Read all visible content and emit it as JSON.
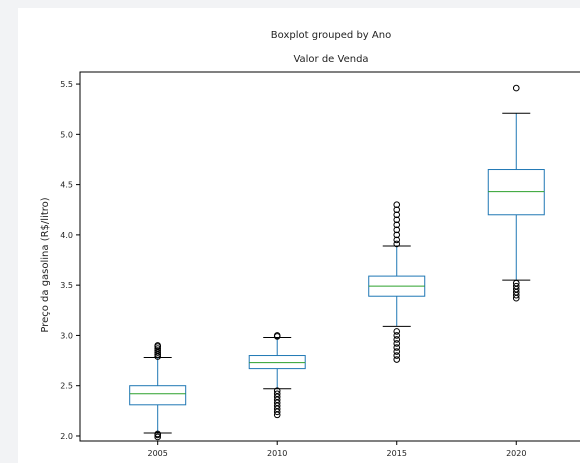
{
  "chart_data": {
    "type": "boxplot",
    "suptitle": "Boxplot grouped by Ano",
    "title": "Valor de Venda",
    "xlabel": "",
    "ylabel": "Preço da gasolina (R$/litro)",
    "ylim": [
      1.95,
      5.62
    ],
    "yticks": [
      "2.0",
      "2.5",
      "3.0",
      "3.5",
      "4.0",
      "4.5",
      "5.0",
      "5.5"
    ],
    "categories": [
      "2005",
      "2010",
      "2015",
      "2020"
    ],
    "boxes": [
      {
        "category": "2005",
        "whisker_low": 2.03,
        "q1": 2.31,
        "median": 2.42,
        "q3": 2.5,
        "whisker_high": 2.78,
        "outliers": [
          1.99,
          2.01,
          2.02,
          2.79,
          2.81,
          2.83,
          2.85,
          2.87,
          2.89,
          2.9
        ]
      },
      {
        "category": "2010",
        "whisker_low": 2.47,
        "q1": 2.67,
        "median": 2.73,
        "q3": 2.8,
        "whisker_high": 2.98,
        "outliers": [
          2.21,
          2.24,
          2.27,
          2.3,
          2.33,
          2.36,
          2.39,
          2.42,
          2.45,
          2.99,
          3.0
        ]
      },
      {
        "category": "2015",
        "whisker_low": 3.09,
        "q1": 3.39,
        "median": 3.49,
        "q3": 3.59,
        "whisker_high": 3.89,
        "outliers": [
          2.76,
          2.8,
          2.84,
          2.88,
          2.92,
          2.96,
          3.0,
          3.04,
          3.91,
          3.95,
          4.0,
          4.05,
          4.1,
          4.15,
          4.2,
          4.25,
          4.3
        ]
      },
      {
        "category": "2020",
        "whisker_low": 3.55,
        "q1": 4.2,
        "median": 4.43,
        "q3": 4.65,
        "whisker_high": 5.21,
        "outliers": [
          3.37,
          3.4,
          3.43,
          3.46,
          3.49,
          3.52,
          5.46
        ]
      }
    ],
    "grid": false,
    "colors": {
      "box": "#1f77b4",
      "median": "#2ca02c",
      "outlier": "#000000"
    }
  }
}
